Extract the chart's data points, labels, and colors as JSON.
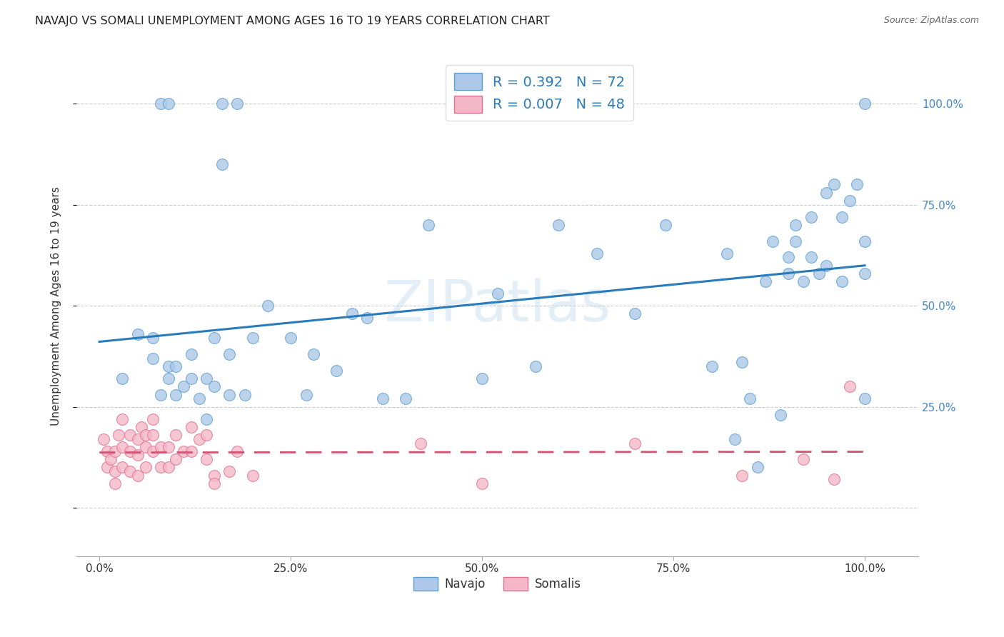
{
  "title": "NAVAJO VS SOMALI UNEMPLOYMENT AMONG AGES 16 TO 19 YEARS CORRELATION CHART",
  "source": "Source: ZipAtlas.com",
  "ylabel": "Unemployment Among Ages 16 to 19 years",
  "navajo_R": 0.392,
  "navajo_N": 72,
  "somali_R": 0.007,
  "somali_N": 48,
  "navajo_color": "#adc8e8",
  "navajo_edge_color": "#5a9fd4",
  "navajo_line_color": "#2b7bba",
  "somali_color": "#f5b8c8",
  "somali_edge_color": "#e07090",
  "somali_line_color": "#d45070",
  "legend_text_color": "#2b7bba",
  "watermark_text": "ZIPatlas",
  "background_color": "#ffffff",
  "grid_color": "#cccccc",
  "navajo_x": [
    0.08,
    0.09,
    0.16,
    0.18,
    0.62,
    1.0,
    0.03,
    0.05,
    0.07,
    0.07,
    0.08,
    0.09,
    0.09,
    0.1,
    0.1,
    0.11,
    0.12,
    0.12,
    0.13,
    0.14,
    0.14,
    0.15,
    0.15,
    0.16,
    0.17,
    0.17,
    0.19,
    0.2,
    0.22,
    0.25,
    0.27,
    0.28,
    0.31,
    0.33,
    0.35,
    0.37,
    0.4,
    0.43,
    0.5,
    0.52,
    0.57,
    0.6,
    0.65,
    0.7,
    0.74,
    0.8,
    0.82,
    0.83,
    0.84,
    0.85,
    0.86,
    0.87,
    0.88,
    0.89,
    0.9,
    0.9,
    0.91,
    0.91,
    0.92,
    0.93,
    0.93,
    0.94,
    0.95,
    0.95,
    0.96,
    0.97,
    0.97,
    0.98,
    0.99,
    1.0,
    1.0,
    1.0
  ],
  "navajo_y": [
    1.0,
    1.0,
    1.0,
    1.0,
    1.0,
    1.0,
    0.32,
    0.43,
    0.37,
    0.42,
    0.28,
    0.35,
    0.32,
    0.28,
    0.35,
    0.3,
    0.32,
    0.38,
    0.27,
    0.22,
    0.32,
    0.3,
    0.42,
    0.85,
    0.28,
    0.38,
    0.28,
    0.42,
    0.5,
    0.42,
    0.28,
    0.38,
    0.34,
    0.48,
    0.47,
    0.27,
    0.27,
    0.7,
    0.32,
    0.53,
    0.35,
    0.7,
    0.63,
    0.48,
    0.7,
    0.35,
    0.63,
    0.17,
    0.36,
    0.27,
    0.1,
    0.56,
    0.66,
    0.23,
    0.58,
    0.62,
    0.66,
    0.7,
    0.56,
    0.62,
    0.72,
    0.58,
    0.6,
    0.78,
    0.8,
    0.72,
    0.56,
    0.76,
    0.8,
    0.58,
    0.66,
    0.27
  ],
  "somali_x": [
    0.005,
    0.01,
    0.01,
    0.015,
    0.02,
    0.02,
    0.02,
    0.025,
    0.03,
    0.03,
    0.03,
    0.04,
    0.04,
    0.04,
    0.05,
    0.05,
    0.05,
    0.055,
    0.06,
    0.06,
    0.06,
    0.07,
    0.07,
    0.07,
    0.08,
    0.08,
    0.09,
    0.09,
    0.1,
    0.1,
    0.11,
    0.12,
    0.12,
    0.13,
    0.14,
    0.14,
    0.15,
    0.15,
    0.17,
    0.18,
    0.2,
    0.42,
    0.5,
    0.7,
    0.84,
    0.92,
    0.96,
    0.98
  ],
  "somali_y": [
    0.17,
    0.14,
    0.1,
    0.12,
    0.09,
    0.14,
    0.06,
    0.18,
    0.22,
    0.15,
    0.1,
    0.18,
    0.14,
    0.09,
    0.17,
    0.13,
    0.08,
    0.2,
    0.18,
    0.15,
    0.1,
    0.22,
    0.18,
    0.14,
    0.15,
    0.1,
    0.15,
    0.1,
    0.18,
    0.12,
    0.14,
    0.2,
    0.14,
    0.17,
    0.18,
    0.12,
    0.08,
    0.06,
    0.09,
    0.14,
    0.08,
    0.16,
    0.06,
    0.16,
    0.08,
    0.12,
    0.07,
    0.3
  ],
  "x_ticks": [
    0.0,
    0.25,
    0.5,
    0.75,
    1.0
  ],
  "x_tick_labels": [
    "0.0%",
    "25.0%",
    "50.0%",
    "75.0%",
    "100.0%"
  ],
  "y_ticks": [
    0.0,
    0.25,
    0.5,
    0.75,
    1.0
  ],
  "y_tick_labels": [
    "",
    "25.0%",
    "50.0%",
    "75.0%",
    "100.0%"
  ],
  "xlim": [
    -0.03,
    1.07
  ],
  "ylim": [
    -0.12,
    1.12
  ]
}
